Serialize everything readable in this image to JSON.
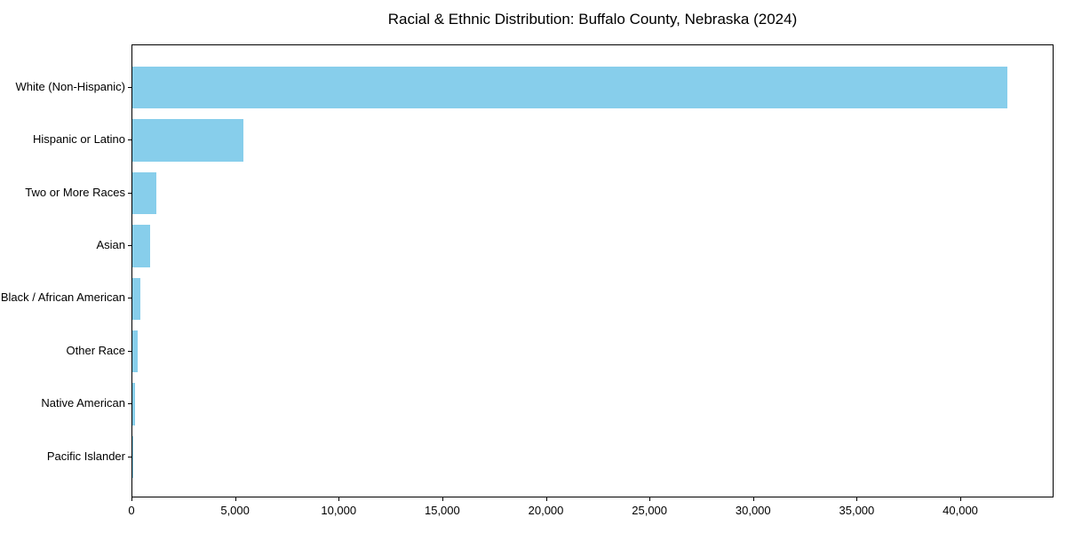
{
  "chart_data": {
    "type": "bar",
    "orientation": "horizontal",
    "title": "Racial & Ethnic Distribution: Buffalo County, Nebraska (2024)",
    "categories": [
      "White (Non-Hispanic)",
      "Hispanic or Latino",
      "Two or More Races",
      "Asian",
      "Black / African American",
      "Other Race",
      "Native American",
      "Pacific Islander"
    ],
    "values": [
      42300,
      5350,
      1160,
      840,
      400,
      250,
      130,
      30
    ],
    "xlabel": "",
    "ylabel": "",
    "xlim": [
      0,
      44500
    ],
    "xticks": [
      0,
      5000,
      10000,
      15000,
      20000,
      25000,
      30000,
      35000,
      40000
    ],
    "xtick_labels": [
      "0",
      "5,000",
      "10,000",
      "15,000",
      "20,000",
      "25,000",
      "30,000",
      "35,000",
      "40,000"
    ],
    "bar_color": "#87CEEB",
    "frame_color": "#000000",
    "grid": false,
    "legend_position": "none"
  }
}
